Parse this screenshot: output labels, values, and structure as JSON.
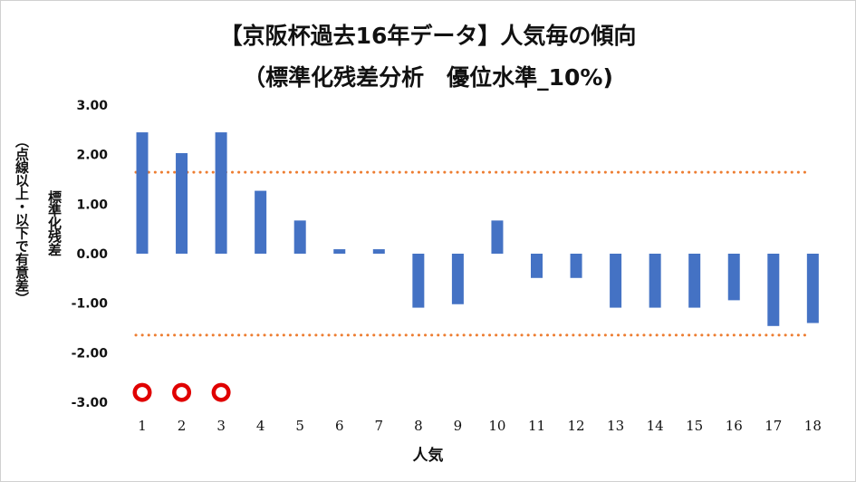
{
  "chart_data": {
    "type": "bar",
    "title": "【京阪杯過去16年データ】人気毎の傾向",
    "subtitle": "（標準化残差分析　優位水準_10%)",
    "xlabel": "人気",
    "ylabel": "標準化残差",
    "ylabel_note": "（点線以上・以下で有意差）",
    "categories": [
      "1",
      "2",
      "3",
      "4",
      "5",
      "6",
      "7",
      "8",
      "9",
      "10",
      "11",
      "12",
      "13",
      "14",
      "15",
      "16",
      "17",
      "18"
    ],
    "values": [
      2.45,
      2.03,
      2.45,
      1.27,
      0.67,
      0.09,
      0.09,
      -1.09,
      -1.02,
      0.67,
      -0.49,
      -0.49,
      -1.09,
      -1.09,
      -1.09,
      -0.94,
      -1.46,
      -1.4
    ],
    "ylim": [
      -3.0,
      3.0
    ],
    "yticks": [
      "3.00",
      "2.00",
      "1.00",
      "0.00",
      "-1.00",
      "-2.00",
      "-3.00"
    ],
    "ytick_values": [
      3,
      2,
      1,
      0,
      -1,
      -2,
      -3
    ],
    "thresholds": [
      1.645,
      -1.645
    ],
    "markers": {
      "categories": [
        "1",
        "2",
        "3"
      ],
      "y": -2.8
    },
    "bar_color": "#4472C4",
    "threshold_color": "#ED7D31",
    "marker_color": "#E00000",
    "grid": false
  }
}
